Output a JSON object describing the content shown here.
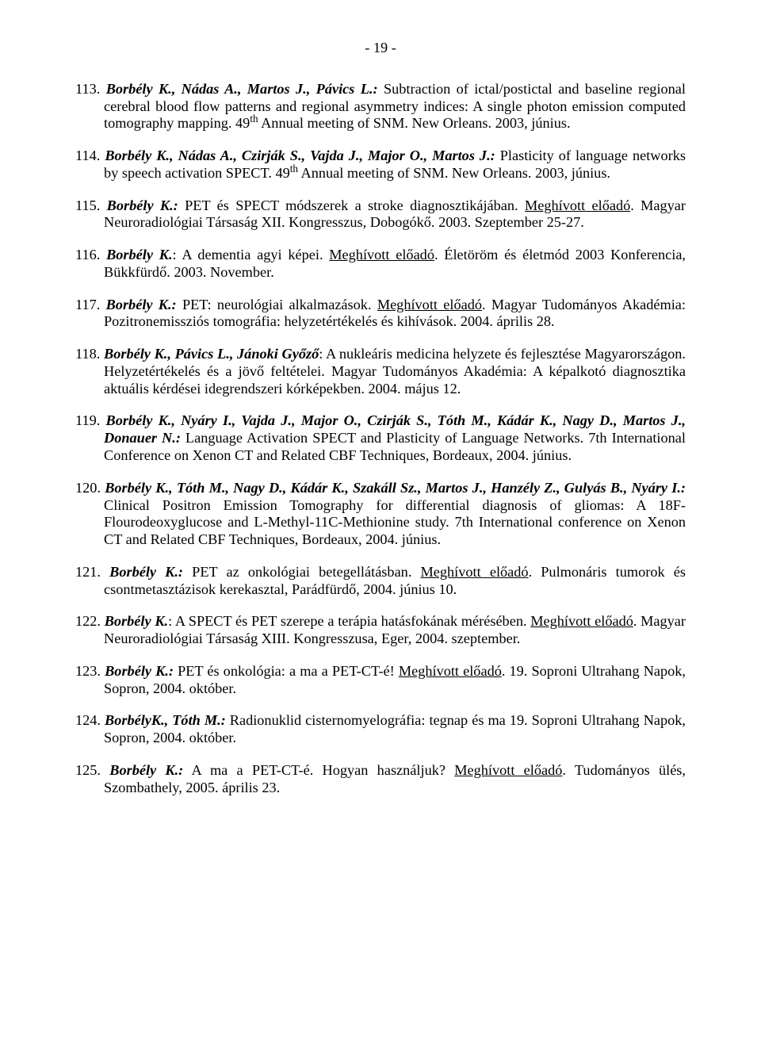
{
  "pageNumberTop": "- 19 -",
  "entries": [
    {
      "parts": [
        {
          "t": "113. ",
          "b": false,
          "i": false
        },
        {
          "t": "Borbély K., Nádas A., Martos J., Pávics L.:",
          "b": true,
          "i": true
        },
        {
          "t": " Subtraction of ictal/postictal and baseline regional cerebral blood flow patterns and regional asymmetry indices: A single photon emission computed tomography mapping. 49",
          "b": false,
          "i": false
        },
        {
          "t": "th",
          "sup": true
        },
        {
          "t": " Annual meeting of SNM. New Orleans. 2003, június.",
          "b": false,
          "i": false
        }
      ]
    },
    {
      "parts": [
        {
          "t": "114. ",
          "b": false,
          "i": false
        },
        {
          "t": "Borbély K., Nádas A., Czirják S., Vajda J., Major O., Martos J.:",
          "b": true,
          "i": true
        },
        {
          "t": " Plasticity of language networks by speech activation SPECT. 49",
          "b": false,
          "i": false
        },
        {
          "t": "th",
          "sup": true
        },
        {
          "t": " Annual meeting of SNM. New Orleans. 2003, június.",
          "b": false,
          "i": false
        }
      ]
    },
    {
      "parts": [
        {
          "t": "115. ",
          "b": false,
          "i": false
        },
        {
          "t": "Borbély K.:",
          "b": true,
          "i": true
        },
        {
          "t": " PET és SPECT módszerek a stroke diagnosztikájában. ",
          "b": false,
          "i": false
        },
        {
          "t": "Meghívott előadó",
          "u": true
        },
        {
          "t": ". Magyar Neuroradiológiai Társaság XII. Kongresszus, Dobogókő. 2003. Szeptember 25-27.",
          "b": false,
          "i": false
        }
      ]
    },
    {
      "parts": [
        {
          "t": "116. ",
          "b": false,
          "i": false
        },
        {
          "t": "Borbély K.",
          "b": true,
          "i": true
        },
        {
          "t": ": A dementia agyi képei. ",
          "b": false,
          "i": false
        },
        {
          "t": "Meghívott előadó",
          "u": true
        },
        {
          "t": ". Életöröm és életmód 2003 Konferencia, Bükkfürdő. 2003. November.",
          "b": false,
          "i": false
        }
      ]
    },
    {
      "parts": [
        {
          "t": "117. ",
          "b": false,
          "i": false
        },
        {
          "t": "Borbély K.:",
          "b": true,
          "i": true
        },
        {
          "t": " PET: neurológiai alkalmazások. ",
          "b": false,
          "i": false
        },
        {
          "t": "Meghívott előadó",
          "u": true
        },
        {
          "t": ". Magyar Tudományos Akadémia: Pozitronemissziós tomográfia: helyzetértékelés és kihívások. 2004. április 28.",
          "b": false,
          "i": false
        }
      ]
    },
    {
      "parts": [
        {
          "t": "118. ",
          "b": false,
          "i": false
        },
        {
          "t": "Borbély K., Pávics L., Jánoki Győző",
          "b": true,
          "i": true
        },
        {
          "t": ": A nukleáris medicina helyzete és fejlesztése Magyarországon. Helyzetértékelés és a jövő feltételei. Magyar Tudományos Akadémia: A képalkotó diagnosztika aktuális kérdései idegrendszeri kórképekben. 2004. május 12.",
          "b": false,
          "i": false
        }
      ]
    },
    {
      "parts": [
        {
          "t": "119. ",
          "b": false,
          "i": false
        },
        {
          "t": "Borbély K., Nyáry I., Vajda J., Major O., Czirják S., Tóth M., Kádár K., Nagy D., Martos J., Donauer N.:",
          "b": true,
          "i": true
        },
        {
          "t": " Language Activation SPECT and Plasticity of Language Networks. 7th International Conference on Xenon CT and Related CBF Techniques, Bordeaux, 2004. június.",
          "b": false,
          "i": false
        }
      ]
    },
    {
      "parts": [
        {
          "t": "120. ",
          "b": false,
          "i": false
        },
        {
          "t": "Borbély K., Tóth M., Nagy D., Kádár K., Szakáll Sz., Martos J., Hanzély Z., Gulyás B., Nyáry I.:",
          "b": true,
          "i": true
        },
        {
          "t": " Clinical Positron Emission Tomography for differential diagnosis of gliomas: A 18F-Flourodeoxyglucose and L-Methyl-11C-Methionine study. 7th International conference on Xenon CT and Related CBF Techniques, Bordeaux, 2004. június.",
          "b": false,
          "i": false
        }
      ]
    },
    {
      "parts": [
        {
          "t": "121. ",
          "b": false,
          "i": false
        },
        {
          "t": "Borbély K.:",
          "b": true,
          "i": true
        },
        {
          "t": " PET az onkológiai betegellátásban. ",
          "b": false,
          "i": false
        },
        {
          "t": "Meghívott előadó",
          "u": true
        },
        {
          "t": ". Pulmonáris tumorok és csontmetasztázisok kerekasztal, Parádfürdő, 2004. június 10.",
          "b": false,
          "i": false
        }
      ]
    },
    {
      "parts": [
        {
          "t": "122. ",
          "b": false,
          "i": false
        },
        {
          "t": "Borbély K.",
          "b": true,
          "i": true
        },
        {
          "t": ": A SPECT és PET szerepe a terápia hatásfokának mérésében. ",
          "b": false,
          "i": false
        },
        {
          "t": "Meghívott előadó",
          "u": true
        },
        {
          "t": ". Magyar Neuroradiológiai Társaság XIII. Kongresszusa, Eger, 2004. szeptember.",
          "b": false,
          "i": false
        }
      ]
    },
    {
      "parts": [
        {
          "t": "123. ",
          "b": false,
          "i": false
        },
        {
          "t": "Borbély K.:",
          "b": true,
          "i": true
        },
        {
          "t": " PET és onkológia: a ma a PET-CT-é! ",
          "b": false,
          "i": false
        },
        {
          "t": "Meghívott előadó",
          "u": true
        },
        {
          "t": ". 19. Soproni Ultrahang Napok, Sopron, 2004. október.",
          "b": false,
          "i": false
        }
      ]
    },
    {
      "parts": [
        {
          "t": "124. ",
          "b": false,
          "i": false
        },
        {
          "t": "BorbélyK., Tóth M.:",
          "b": true,
          "i": true
        },
        {
          "t": " Radionuklid cisternomyelográfia: tegnap és ma 19. Soproni Ultrahang Napok, Sopron, 2004. október.",
          "b": false,
          "i": false
        }
      ]
    },
    {
      "parts": [
        {
          "t": "125. ",
          "b": false,
          "i": false
        },
        {
          "t": "Borbély K.:",
          "b": true,
          "i": true
        },
        {
          "t": " A ma a PET-CT-é. Hogyan használjuk? ",
          "b": false,
          "i": false
        },
        {
          "t": "Meghívott előadó",
          "u": true
        },
        {
          "t": ". Tudományos ülés, Szombathely, 2005. április 23.",
          "b": false,
          "i": false
        }
      ]
    }
  ]
}
